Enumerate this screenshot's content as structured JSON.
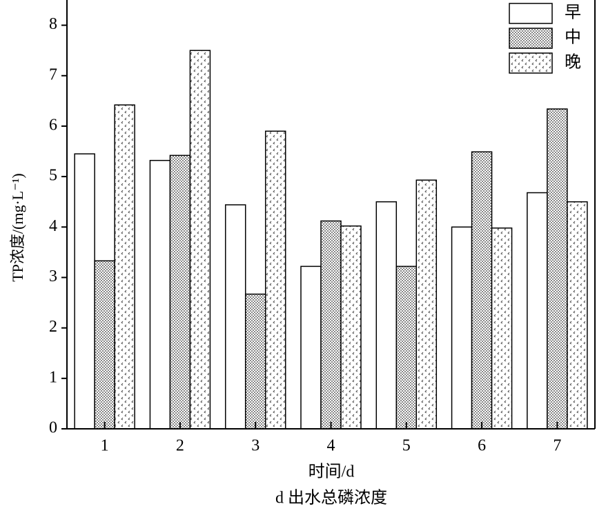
{
  "chart_data": {
    "type": "bar",
    "x_label": "时间/d",
    "y_label": "TP浓度/(mg·L⁻¹)",
    "caption": "d 出水总磷浓度",
    "categories": [
      "1",
      "2",
      "3",
      "4",
      "5",
      "6",
      "7"
    ],
    "series": [
      {
        "name": "早",
        "color": "#ffffff",
        "pattern": "none",
        "values": [
          5.45,
          5.32,
          4.44,
          3.22,
          4.5,
          4.0,
          4.68
        ]
      },
      {
        "name": "中",
        "color": "#ffffff",
        "pattern": "dense-dots",
        "values": [
          3.33,
          5.42,
          2.67,
          4.12,
          3.22,
          5.49,
          6.34
        ]
      },
      {
        "name": "晚",
        "color": "#ffffff",
        "pattern": "sparse-marks",
        "values": [
          6.42,
          7.5,
          5.9,
          4.02,
          4.93,
          3.98,
          4.5
        ]
      }
    ],
    "ylim": [
      0,
      8.5
    ],
    "yticks": [
      0,
      1,
      2,
      3,
      4,
      5,
      6,
      7,
      8
    ],
    "grid": false,
    "legend": "top-right"
  }
}
